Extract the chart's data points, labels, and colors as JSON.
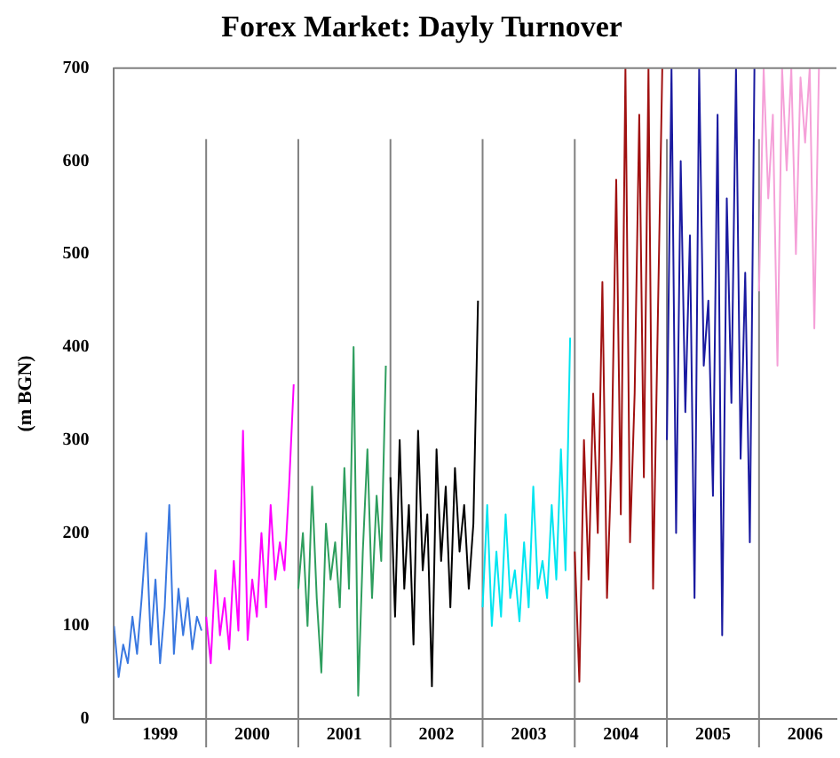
{
  "chart_data": {
    "type": "line",
    "title": "Forex Market: Dayly Turnover",
    "ylabel": "(m BGN)",
    "xlim": [
      1999,
      2006.84
    ],
    "xticks": [
      {
        "value": 1999.5,
        "label": "1999"
      },
      {
        "value": 2000.5,
        "label": "2000"
      },
      {
        "value": 2001.5,
        "label": "2001"
      },
      {
        "value": 2002.5,
        "label": "2002"
      },
      {
        "value": 2003.5,
        "label": "2003"
      },
      {
        "value": 2004.5,
        "label": "2004"
      },
      {
        "value": 2005.5,
        "label": "2005"
      },
      {
        "value": 2006.5,
        "label": "2006"
      }
    ],
    "ylim": [
      0,
      700
    ],
    "yticks": [
      0,
      100,
      200,
      300,
      400,
      500,
      600,
      700
    ],
    "grid": false,
    "legend": false,
    "ref_lines": [
      {
        "axis": "x",
        "value": 2000,
        "color": "#808080"
      },
      {
        "axis": "x",
        "value": 2001,
        "color": "#808080"
      },
      {
        "axis": "x",
        "value": 2002,
        "color": "#808080"
      },
      {
        "axis": "x",
        "value": 2003,
        "color": "#808080"
      },
      {
        "axis": "x",
        "value": 2004,
        "color": "#808080"
      },
      {
        "axis": "x",
        "value": 2005,
        "color": "#808080"
      },
      {
        "axis": "x",
        "value": 2006,
        "color": "#808080"
      }
    ],
    "series": [
      {
        "color": "#3a78e0",
        "x": [
          1999,
          1999.05,
          1999.1,
          1999.15,
          1999.2,
          1999.25,
          1999.3,
          1999.35,
          1999.4,
          1999.45,
          1999.5,
          1999.55,
          1999.6,
          1999.65,
          1999.7,
          1999.75,
          1999.8,
          1999.85,
          1999.9,
          1999.95
        ],
        "values": [
          100,
          45,
          80,
          60,
          110,
          70,
          130,
          200,
          80,
          150,
          60,
          120,
          230,
          70,
          140,
          90,
          130,
          75,
          110,
          95
        ]
      },
      {
        "color": "#ff00ff",
        "x": [
          2000,
          2000.05,
          2000.1,
          2000.15,
          2000.2,
          2000.25,
          2000.3,
          2000.35,
          2000.4,
          2000.45,
          2000.5,
          2000.55,
          2000.6,
          2000.65,
          2000.7,
          2000.75,
          2000.8,
          2000.85,
          2000.9,
          2000.95
        ],
        "values": [
          110,
          60,
          160,
          90,
          130,
          75,
          170,
          95,
          310,
          85,
          150,
          110,
          200,
          120,
          230,
          150,
          190,
          160,
          250,
          360
        ]
      },
      {
        "color": "#2e9e5e",
        "x": [
          2001,
          2001.05,
          2001.1,
          2001.15,
          2001.2,
          2001.25,
          2001.3,
          2001.35,
          2001.4,
          2001.45,
          2001.5,
          2001.55,
          2001.6,
          2001.65,
          2001.7,
          2001.75,
          2001.8,
          2001.85,
          2001.9,
          2001.95
        ],
        "values": [
          140,
          200,
          100,
          250,
          130,
          50,
          210,
          150,
          190,
          120,
          270,
          140,
          400,
          25,
          180,
          290,
          130,
          240,
          170,
          380
        ]
      },
      {
        "color": "#000000",
        "x": [
          2002,
          2002.05,
          2002.1,
          2002.15,
          2002.2,
          2002.25,
          2002.3,
          2002.35,
          2002.4,
          2002.45,
          2002.5,
          2002.55,
          2002.6,
          2002.65,
          2002.7,
          2002.75,
          2002.8,
          2002.85,
          2002.9,
          2002.95
        ],
        "values": [
          260,
          110,
          300,
          140,
          230,
          80,
          310,
          160,
          220,
          35,
          290,
          170,
          250,
          120,
          270,
          180,
          230,
          140,
          210,
          450
        ]
      },
      {
        "color": "#00e5f0",
        "x": [
          2003,
          2003.05,
          2003.1,
          2003.15,
          2003.2,
          2003.25,
          2003.3,
          2003.35,
          2003.4,
          2003.45,
          2003.5,
          2003.55,
          2003.6,
          2003.65,
          2003.7,
          2003.75,
          2003.8,
          2003.85,
          2003.9,
          2003.95
        ],
        "values": [
          120,
          230,
          100,
          180,
          110,
          220,
          130,
          160,
          105,
          190,
          120,
          250,
          140,
          170,
          130,
          230,
          150,
          290,
          160,
          410
        ]
      },
      {
        "color": "#a01010",
        "x": [
          2004,
          2004.05,
          2004.1,
          2004.15,
          2004.2,
          2004.25,
          2004.3,
          2004.35,
          2004.4,
          2004.45,
          2004.5,
          2004.55,
          2004.6,
          2004.65,
          2004.7,
          2004.75,
          2004.8,
          2004.85,
          2004.9,
          2004.95
        ],
        "values": [
          180,
          40,
          300,
          150,
          350,
          200,
          470,
          130,
          280,
          580,
          220,
          700,
          190,
          350,
          650,
          260,
          700,
          140,
          420,
          700
        ]
      },
      {
        "color": "#1a1aa0",
        "x": [
          2005,
          2005.05,
          2005.1,
          2005.15,
          2005.2,
          2005.25,
          2005.3,
          2005.35,
          2005.4,
          2005.45,
          2005.5,
          2005.55,
          2005.6,
          2005.65,
          2005.7,
          2005.75,
          2005.8,
          2005.85,
          2005.9,
          2005.95
        ],
        "values": [
          300,
          700,
          200,
          600,
          330,
          520,
          130,
          700,
          380,
          450,
          240,
          650,
          90,
          560,
          340,
          700,
          280,
          480,
          190,
          700
        ]
      },
      {
        "color": "#f5a0d8",
        "x": [
          2006,
          2006.05,
          2006.1,
          2006.15,
          2006.2,
          2006.25,
          2006.3,
          2006.35,
          2006.4,
          2006.45,
          2006.5,
          2006.55,
          2006.6,
          2006.65
        ],
        "values": [
          460,
          700,
          560,
          650,
          380,
          700,
          590,
          700,
          500,
          690,
          620,
          700,
          420,
          700
        ]
      }
    ]
  }
}
